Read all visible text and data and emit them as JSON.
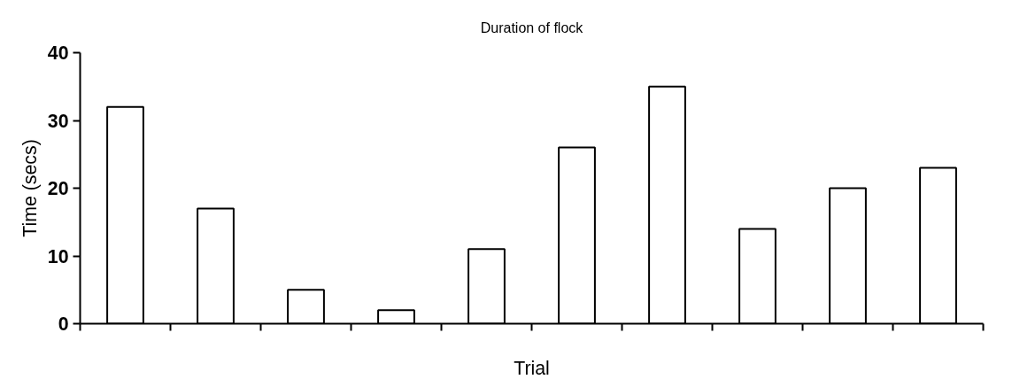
{
  "chart_data": {
    "type": "bar",
    "title": "Duration of flock",
    "xlabel": "Trial",
    "ylabel": "Time (secs)",
    "categories": [
      null,
      null,
      null,
      null,
      null,
      null,
      null,
      null,
      null,
      null
    ],
    "values": [
      32,
      17,
      5,
      2,
      11,
      26,
      35,
      14,
      20,
      23
    ],
    "color": "#ffffff",
    "ylim": [
      0,
      40
    ],
    "yticks": [
      0,
      10,
      20,
      30,
      40
    ],
    "grid": false
  }
}
